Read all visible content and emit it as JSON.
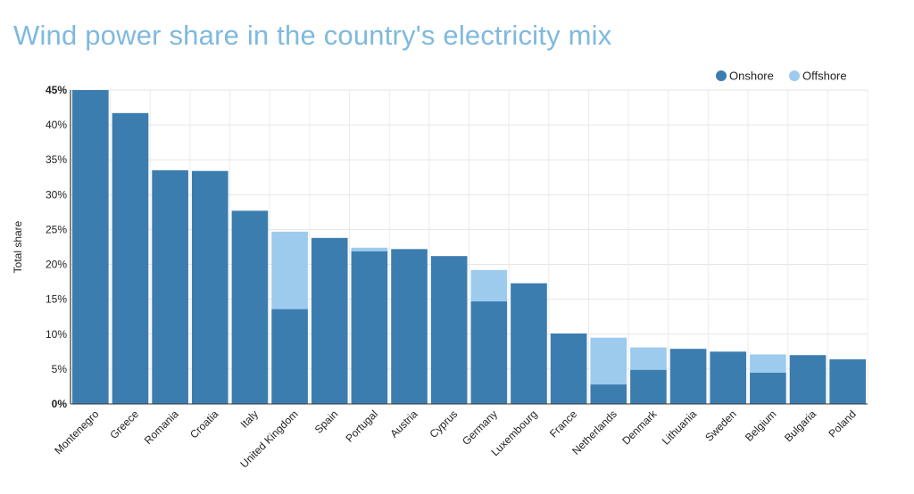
{
  "title": "Wind power share in the country's electricity mix",
  "colors": {
    "onshore": "#3c7db0",
    "offshore": "#9ccbee",
    "title": "#7fb9de"
  },
  "chart_data": {
    "type": "bar",
    "stacked": true,
    "title": "Wind power share in the country's electricity mix",
    "xlabel": "",
    "ylabel": "Total share",
    "ylim": [
      0,
      45
    ],
    "yticks": [
      "0%",
      "5%",
      "10%",
      "15%",
      "20%",
      "25%",
      "30%",
      "35%",
      "40%",
      "45%"
    ],
    "grid": true,
    "legend_position": "top-right",
    "categories": [
      "Montenegro",
      "Greece",
      "Romania",
      "Croatia",
      "Italy",
      "United Kingdom",
      "Spain",
      "Portugal",
      "Austria",
      "Cyprus",
      "Germany",
      "Luxembourg",
      "France",
      "Netherlands",
      "Denmark",
      "Lithuania",
      "Sweden",
      "Belgium",
      "Bulgaria",
      "Poland"
    ],
    "series": [
      {
        "name": "Onshore",
        "color": "#3c7db0",
        "values": [
          45.0,
          41.7,
          33.5,
          33.4,
          27.7,
          13.6,
          23.8,
          21.9,
          22.2,
          21.2,
          14.7,
          17.3,
          10.1,
          2.8,
          4.9,
          7.9,
          7.5,
          4.5,
          7.0,
          6.4
        ]
      },
      {
        "name": "Offshore",
        "color": "#9ccbee",
        "values": [
          0,
          0,
          0,
          0,
          0,
          11.1,
          0,
          0.5,
          0,
          0,
          4.5,
          0,
          0,
          6.7,
          3.2,
          0,
          0,
          2.6,
          0,
          0
        ]
      }
    ]
  }
}
